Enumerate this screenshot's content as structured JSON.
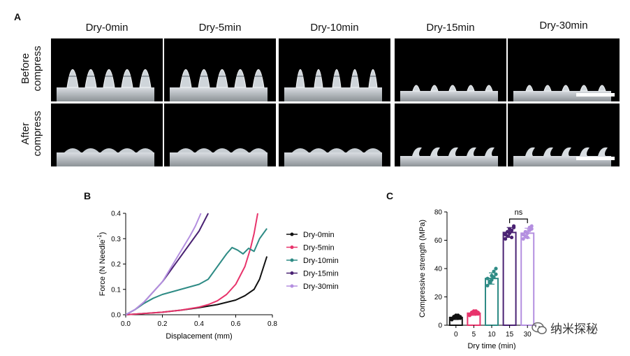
{
  "panels": {
    "a": "A",
    "b": "B",
    "c": "C"
  },
  "panel_a": {
    "columns": [
      "Dry-0min",
      "Dry-5min",
      "Dry-10min",
      "Dry-15min",
      "Dry-30min"
    ],
    "rows": [
      {
        "line1": "Before",
        "line2": "compress"
      },
      {
        "line1": "After",
        "line2": "compress"
      }
    ]
  },
  "watermark": "纳米探秘",
  "chart_data": [
    {
      "type": "line",
      "xlabel": "Displacement (mm)",
      "ylabel_main": "Force (N Needle",
      "ylabel_sup": "-1",
      "ylabel_end": ")",
      "xlim": [
        0,
        0.8
      ],
      "ylim": [
        0,
        0.4
      ],
      "xticks": [
        "0.0",
        "0.2",
        "0.4",
        "0.6",
        "0.8"
      ],
      "yticks": [
        "0.0",
        "0.1",
        "0.2",
        "0.3",
        "0.4"
      ],
      "legend_position": "right",
      "series": [
        {
          "name": "Dry-0min",
          "color": "#111111",
          "x": [
            0,
            0.1,
            0.2,
            0.3,
            0.4,
            0.5,
            0.6,
            0.65,
            0.7,
            0.73,
            0.75,
            0.77
          ],
          "y": [
            0,
            0.005,
            0.01,
            0.018,
            0.028,
            0.04,
            0.058,
            0.075,
            0.1,
            0.14,
            0.185,
            0.23
          ]
        },
        {
          "name": "Dry-5min",
          "color": "#e8336b",
          "x": [
            0,
            0.1,
            0.2,
            0.3,
            0.4,
            0.45,
            0.5,
            0.55,
            0.6,
            0.65,
            0.68,
            0.7,
            0.72
          ],
          "y": [
            0,
            0.005,
            0.01,
            0.018,
            0.03,
            0.04,
            0.055,
            0.08,
            0.12,
            0.19,
            0.26,
            0.32,
            0.4
          ]
        },
        {
          "name": "Dry-10min",
          "color": "#2e8b85",
          "x": [
            0,
            0.05,
            0.1,
            0.15,
            0.2,
            0.25,
            0.3,
            0.35,
            0.4,
            0.45,
            0.5,
            0.55,
            0.58,
            0.61,
            0.64,
            0.67,
            0.7,
            0.73,
            0.77
          ],
          "y": [
            0,
            0.02,
            0.045,
            0.065,
            0.08,
            0.09,
            0.1,
            0.11,
            0.12,
            0.14,
            0.19,
            0.24,
            0.265,
            0.255,
            0.24,
            0.262,
            0.25,
            0.3,
            0.34
          ]
        },
        {
          "name": "Dry-15min",
          "color": "#4a2273",
          "x": [
            0,
            0.05,
            0.1,
            0.15,
            0.2,
            0.25,
            0.3,
            0.35,
            0.4,
            0.45
          ],
          "y": [
            0,
            0.02,
            0.05,
            0.09,
            0.13,
            0.18,
            0.23,
            0.28,
            0.33,
            0.4
          ]
        },
        {
          "name": "Dry-30min",
          "color": "#b48fe0",
          "x": [
            0,
            0.05,
            0.1,
            0.15,
            0.2,
            0.25,
            0.3,
            0.35,
            0.38,
            0.41
          ],
          "y": [
            0,
            0.02,
            0.05,
            0.09,
            0.13,
            0.19,
            0.25,
            0.31,
            0.35,
            0.4
          ]
        }
      ]
    },
    {
      "type": "bar",
      "xlabel": "Dry time (min)",
      "ylabel": "Compressive strength (MPa)",
      "ylim": [
        0,
        80
      ],
      "yticks": [
        "0",
        "20",
        "40",
        "60",
        "80"
      ],
      "categories": [
        "0",
        "5",
        "10",
        "15",
        "30"
      ],
      "values": [
        5.5,
        8.5,
        33,
        65.5,
        65
      ],
      "errors": [
        1.5,
        1.5,
        4,
        3.5,
        3.5
      ],
      "colors": [
        "#111111",
        "#e8336b",
        "#2e8b85",
        "#4a2273",
        "#b48fe0"
      ],
      "points": [
        [
          4,
          5,
          6,
          7,
          5,
          4,
          6,
          7,
          5,
          6
        ],
        [
          7,
          8,
          9,
          10,
          8,
          7,
          9,
          10,
          8,
          9
        ],
        [
          28,
          30,
          32,
          34,
          36,
          33,
          31,
          35,
          38,
          40
        ],
        [
          61,
          63,
          65,
          67,
          69,
          64,
          66,
          68,
          62,
          70
        ],
        [
          61,
          63,
          65,
          67,
          68,
          64,
          66,
          62,
          69,
          70
        ]
      ],
      "annotation": "ns",
      "annotation_between": [
        "15",
        "30"
      ]
    }
  ]
}
